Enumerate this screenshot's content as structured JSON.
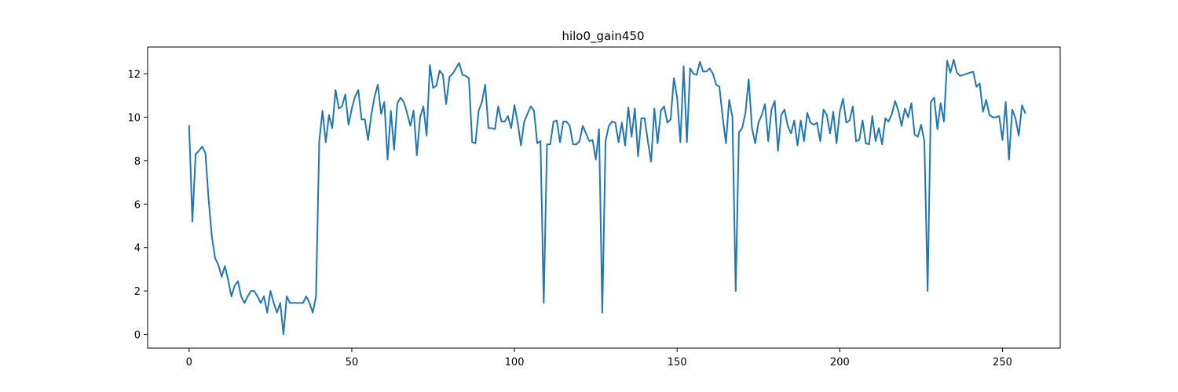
{
  "chart_data": {
    "type": "line",
    "title": "hilo0_gain450",
    "xlabel": "",
    "ylabel": "",
    "xlim": [
      -12.75,
      267.75
    ],
    "ylim": [
      -0.63,
      13.23
    ],
    "x_ticks": [
      0,
      50,
      100,
      150,
      200,
      250
    ],
    "y_ticks": [
      0,
      2,
      4,
      6,
      8,
      10,
      12
    ],
    "grid": false,
    "legend": "none",
    "series": [
      {
        "color": "#1f77b4",
        "x_start": 0,
        "x_step": 1,
        "values": [
          9.6,
          5.2,
          8.3,
          8.45,
          8.65,
          8.35,
          6.2,
          4.5,
          3.5,
          3.2,
          2.65,
          3.15,
          2.5,
          1.75,
          2.25,
          2.45,
          1.75,
          1.45,
          1.75,
          2.0,
          2.0,
          1.75,
          1.45,
          1.75,
          1.0,
          2.0,
          1.45,
          1.0,
          1.45,
          0.0,
          1.75,
          1.45,
          1.45,
          1.45,
          1.45,
          1.45,
          1.75,
          1.45,
          1.0,
          1.75,
          8.9,
          10.3,
          8.85,
          10.1,
          9.5,
          11.25,
          10.4,
          10.5,
          11.05,
          9.65,
          10.4,
          10.95,
          11.25,
          9.9,
          9.9,
          8.95,
          10.1,
          10.95,
          11.5,
          10.15,
          10.7,
          8.05,
          10.3,
          8.5,
          10.65,
          10.9,
          10.7,
          10.2,
          9.6,
          10.3,
          8.25,
          10.0,
          10.5,
          9.15,
          12.4,
          11.35,
          11.45,
          12.15,
          11.95,
          10.6,
          11.85,
          12.0,
          12.25,
          12.5,
          11.95,
          11.9,
          11.8,
          8.85,
          8.8,
          10.3,
          10.7,
          11.5,
          9.5,
          9.5,
          9.45,
          10.5,
          9.8,
          9.8,
          10.05,
          9.5,
          10.55,
          9.75,
          8.7,
          9.8,
          10.15,
          10.5,
          10.3,
          8.8,
          8.9,
          1.45,
          8.75,
          8.75,
          9.8,
          9.85,
          8.85,
          9.8,
          9.8,
          9.6,
          8.75,
          8.75,
          8.9,
          9.6,
          9.25,
          8.9,
          8.95,
          8.05,
          9.45,
          1.0,
          8.9,
          9.6,
          9.8,
          9.75,
          8.85,
          9.75,
          8.7,
          10.45,
          9.1,
          10.4,
          8.2,
          9.95,
          9.95,
          8.9,
          7.95,
          10.4,
          8.8,
          10.3,
          10.5,
          9.75,
          9.9,
          11.8,
          10.9,
          8.85,
          12.35,
          8.85,
          12.25,
          12.0,
          11.95,
          12.55,
          12.1,
          12.1,
          12.25,
          12.0,
          11.5,
          11.4,
          10.0,
          8.8,
          10.8,
          10.0,
          2.0,
          9.3,
          9.5,
          10.2,
          11.75,
          9.5,
          8.8,
          9.75,
          10.1,
          10.6,
          8.9,
          10.35,
          10.75,
          8.45,
          10.1,
          10.35,
          9.6,
          9.25,
          9.85,
          8.7,
          9.85,
          8.9,
          10.2,
          9.75,
          9.65,
          9.75,
          8.9,
          10.35,
          10.1,
          9.25,
          10.25,
          8.8,
          10.25,
          10.85,
          9.75,
          9.85,
          10.5,
          8.9,
          8.95,
          9.85,
          8.8,
          8.75,
          10.05,
          8.9,
          9.5,
          8.75,
          9.95,
          9.8,
          10.15,
          10.75,
          10.3,
          9.6,
          10.4,
          10.0,
          10.65,
          9.2,
          9.1,
          9.65,
          8.9,
          2.0,
          10.7,
          10.9,
          9.45,
          10.65,
          9.8,
          12.6,
          12.05,
          12.65,
          12.05,
          11.9,
          11.95,
          12.0,
          12.05,
          12.1,
          11.4,
          11.55,
          10.25,
          10.8,
          10.1,
          10.0,
          10.0,
          10.05,
          8.95,
          10.7,
          8.05,
          10.35,
          9.95,
          9.15,
          10.55,
          10.2
        ]
      }
    ]
  }
}
